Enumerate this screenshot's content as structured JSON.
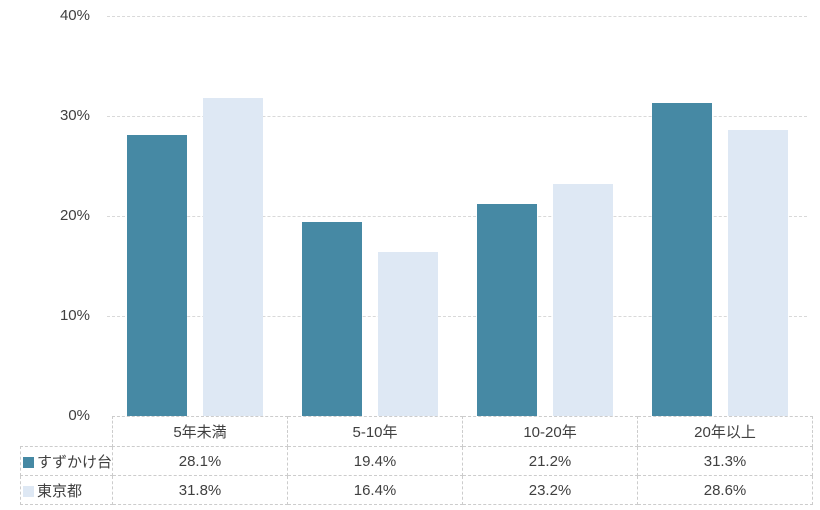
{
  "chart_data": {
    "type": "bar",
    "title": "",
    "xlabel": "",
    "ylabel": "",
    "categories": [
      "5年未満",
      "5-10年",
      "10-20年",
      "20年以上"
    ],
    "series": [
      {
        "name": "すずかけ台",
        "color": "#4689a4",
        "values": [
          28.1,
          19.4,
          21.2,
          31.3
        ]
      },
      {
        "name": "東京都",
        "color": "#dee8f4",
        "values": [
          31.8,
          16.4,
          23.2,
          28.6
        ]
      }
    ],
    "value_suffix": "%",
    "ylim": [
      0,
      40
    ],
    "ytick_labels": [
      "40%",
      "30%",
      "20%",
      "10%",
      "0%"
    ],
    "grid": true,
    "gridline_color": "#d9d9d9",
    "legend_position": "data-table-left",
    "table_cell_values": [
      [
        "28.1%",
        "19.4%",
        "21.2%",
        "31.3%"
      ],
      [
        "31.8%",
        "16.4%",
        "23.2%",
        "28.6%"
      ]
    ],
    "text_color": "#404040"
  }
}
